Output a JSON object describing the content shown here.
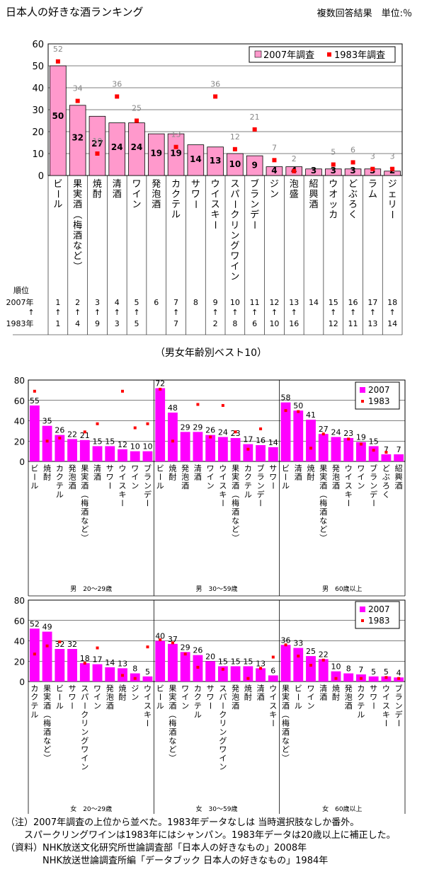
{
  "title": "日本人の好きな酒ランキング",
  "unit_note": "複数回答結果　単位:％",
  "subtitle": "（男女年齢別ベスト10）",
  "rank_labels": [
    "順位",
    "2007年",
    "↑",
    "1983年"
  ],
  "chart_data": [
    {
      "type": "bar",
      "id": "main",
      "categories": [
        "ビール",
        "果実酒（梅酒など）",
        "焼酎",
        "清酒",
        "ワイン",
        "発泡酒",
        "カクテル",
        "サワー",
        "ウイスキー",
        "スパークリングワイン",
        "ブランデー",
        "ジン",
        "泡盛",
        "紹興酒",
        "ウオッカ",
        "どぶろく",
        "ラム",
        "ジェリー"
      ],
      "series": [
        {
          "name": "2007年調査",
          "type": "bar",
          "color": "#ff99cc",
          "values": [
            50,
            32,
            27,
            24,
            24,
            19,
            19,
            14,
            13,
            10,
            9,
            4,
            4,
            3,
            3,
            3,
            3,
            2
          ]
        },
        {
          "name": "1983年調査",
          "type": "marker",
          "color": "#ff0000",
          "values": [
            52,
            34,
            10,
            36,
            25,
            null,
            13,
            null,
            36,
            12,
            21,
            7,
            2,
            null,
            5,
            6,
            3,
            3
          ]
        }
      ],
      "rank_2007": [
        "1",
        "2",
        "3",
        "4",
        "5",
        "6",
        "7",
        "8",
        "9",
        "10",
        "11",
        "12",
        "13",
        "14",
        "15",
        "16",
        "17",
        "18"
      ],
      "rank_1983": [
        "1",
        "4",
        "9",
        "3",
        "5",
        "",
        "7",
        "",
        "2",
        "8",
        "6",
        "10",
        "16",
        "",
        "12",
        "11",
        "13",
        "14"
      ],
      "ylim": [
        0,
        60
      ],
      "yticks": [
        "0",
        "10",
        "20",
        "30",
        "40",
        "50",
        "60"
      ],
      "grid": true,
      "legend": "top-right"
    },
    {
      "type": "bar",
      "id": "male",
      "ylim": [
        0,
        80
      ],
      "yticks": [
        "0",
        "20",
        "40",
        "60",
        "80"
      ],
      "legend": "top-right",
      "legend_labels": [
        "2007",
        "1983"
      ],
      "colors": {
        "bar": "#ff00ff",
        "marker": "#ff0000"
      },
      "groups": [
        {
          "label": "男　20～29歳",
          "categories": [
            "ビール",
            "焼酎",
            "カクテル",
            "発泡酒",
            "果実酒（梅酒など）",
            "清酒",
            "サワー",
            "ウイスキー",
            "ワイン",
            "ブランデー"
          ],
          "values_2007": [
            55,
            35,
            26,
            22,
            21,
            15,
            15,
            12,
            10,
            10
          ],
          "values_1983": [
            69,
            20,
            23,
            null,
            29,
            37,
            null,
            69,
            33,
            37
          ]
        },
        {
          "label": "男　30～59歳",
          "categories": [
            "ビール",
            "焼酎",
            "発泡酒",
            "清酒",
            "ワイン",
            "ウイスキー",
            "果実酒（梅酒など）",
            "カクテル",
            "ブランデー",
            "サワー"
          ],
          "values_2007": [
            72,
            48,
            29,
            29,
            26,
            24,
            23,
            17,
            16,
            14
          ],
          "values_1983": [
            71,
            20,
            null,
            56,
            24,
            55,
            29,
            12,
            32,
            null
          ]
        },
        {
          "label": "男　60歳以上",
          "categories": [
            "ビール",
            "清酒",
            "焼酎",
            "果実酒（梅酒など）",
            "発泡酒",
            "ウイスキー",
            "ワイン",
            "ブランデー",
            "どぶろく",
            "紹興酒"
          ],
          "values_2007": [
            58,
            50,
            41,
            27,
            24,
            23,
            19,
            15,
            7,
            7
          ],
          "values_1983": [
            50,
            49,
            13,
            27,
            null,
            22,
            17,
            11,
            9,
            null
          ]
        }
      ]
    },
    {
      "type": "bar",
      "id": "female",
      "ylim": [
        0,
        80
      ],
      "yticks": [
        "0",
        "20",
        "40",
        "60",
        "80"
      ],
      "legend": "top-right",
      "legend_labels": [
        "2007",
        "1983"
      ],
      "colors": {
        "bar": "#ff00ff",
        "marker": "#ff0000"
      },
      "groups": [
        {
          "label": "女　20～29歳",
          "categories": [
            "カクテル",
            "果実酒（梅酒など）",
            "ビール",
            "サワー",
            "スパークリングワイン",
            "ワイン",
            "発泡酒",
            "焼酎",
            "ジン",
            "ウイスキー"
          ],
          "values_2007": [
            52,
            49,
            32,
            32,
            18,
            17,
            14,
            13,
            8,
            5
          ],
          "values_1983": [
            27,
            35,
            39,
            null,
            18,
            33,
            null,
            6,
            3,
            34
          ]
        },
        {
          "label": "女　30～59歳",
          "categories": [
            "ビール",
            "果実酒（梅酒など）",
            "ワイン",
            "カクテル",
            "サワー",
            "スパークリングワイン",
            "発泡酒",
            "焼酎",
            "清酒",
            "ウイスキー"
          ],
          "values_2007": [
            40,
            37,
            29,
            26,
            20,
            15,
            15,
            15,
            13,
            6
          ],
          "values_1983": [
            41,
            38,
            27,
            14,
            null,
            12,
            null,
            3,
            13,
            24
          ]
        },
        {
          "label": "女　60歳以上",
          "categories": [
            "果実酒（梅酒など）",
            "ビール",
            "ワイン",
            "清酒",
            "焼酎",
            "発泡酒",
            "カクテル",
            "サワー",
            "ウイスキー",
            "ブランデー"
          ],
          "values_2007": [
            36,
            33,
            25,
            22,
            10,
            8,
            7,
            5,
            5,
            4
          ],
          "values_1983": [
            36,
            25,
            16,
            21,
            3,
            null,
            3,
            null,
            4,
            3
          ]
        }
      ]
    }
  ],
  "notes": [
    "（注）2007年調査の上位から並べた。1983年データなしは 当時選択肢なしか番外。",
    "　　スパークリングワインは1983年にはシャンパン。1983年データは20歳以上に補正した。",
    "（資料）NHK放送文化研究所世論調査部「日本人の好きなもの」2008年",
    "　　　　NHK放送世論調査所編「データブック 日本人の好きなもの」1984年"
  ]
}
